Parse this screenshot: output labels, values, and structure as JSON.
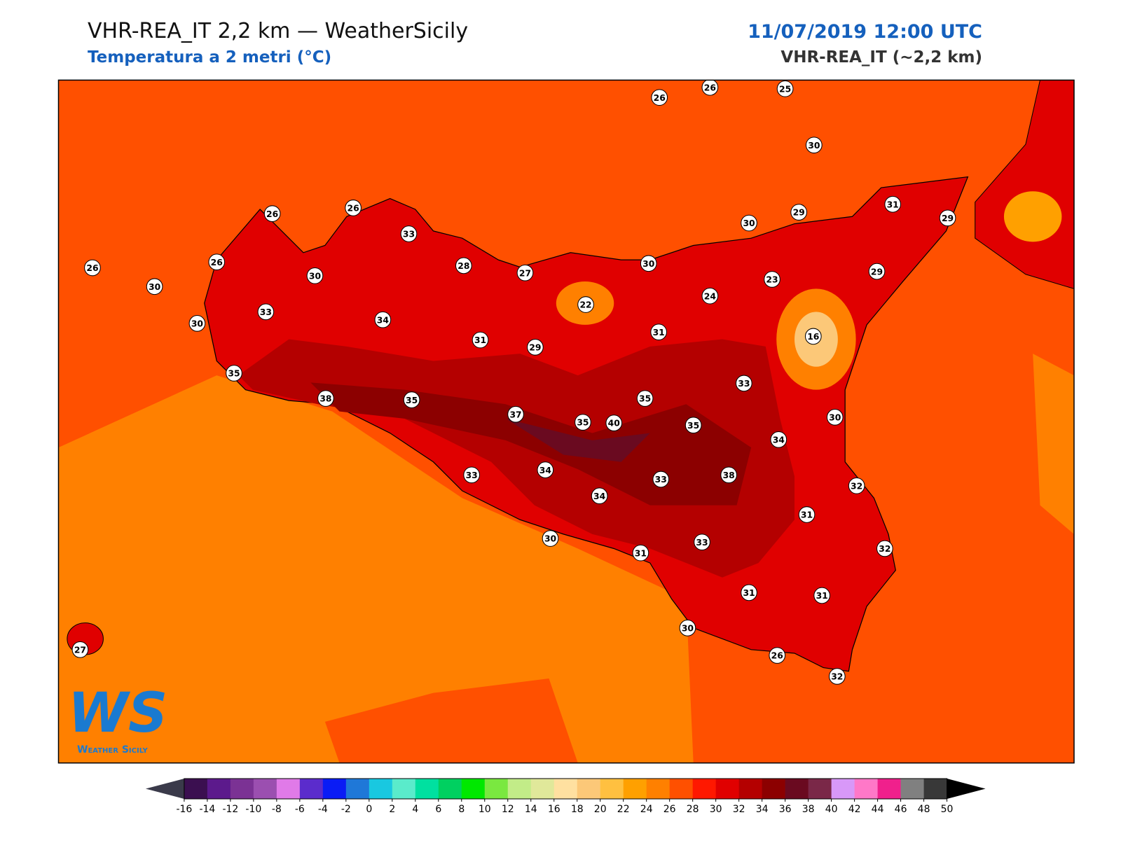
{
  "header": {
    "title": "VHR-REA_IT 2,2 km — WeatherSicily",
    "subtitle": "Temperatura a 2 metri (°C)",
    "date": "11/07/2019 12:00 UTC",
    "model": "VHR-REA_IT (~2,2 km)"
  },
  "logo": {
    "mark": "WS",
    "name": "Weather Sicily"
  },
  "stations": [
    26,
    26,
    25,
    30,
    31,
    29,
    29,
    30,
    29,
    23,
    24,
    30,
    22,
    27,
    28,
    33,
    26,
    26,
    26,
    26,
    30,
    30,
    33,
    30,
    34,
    31,
    29,
    31,
    16,
    33,
    35,
    35,
    40,
    35,
    37,
    35,
    38,
    35,
    30,
    34,
    38,
    33,
    34,
    33,
    34,
    32,
    31,
    30,
    31,
    33,
    32,
    31,
    31,
    30,
    26,
    32,
    27
  ],
  "colorbar": {
    "ticks": [
      -16,
      -14,
      -12,
      -10,
      -8,
      -6,
      -4,
      -2,
      0,
      2,
      4,
      6,
      8,
      10,
      12,
      14,
      16,
      18,
      20,
      22,
      24,
      26,
      28,
      30,
      32,
      34,
      36,
      38,
      40,
      42,
      44,
      46,
      48,
      50
    ],
    "colors": [
      "#3b0f50",
      "#5c1a8c",
      "#7b3294",
      "#9b4fb0",
      "#e07ae8",
      "#5b2ccc",
      "#0a1cf5",
      "#1f78d8",
      "#19c8e0",
      "#5aebcb",
      "#00e0a0",
      "#00d060",
      "#00e800",
      "#7ae840",
      "#c2ec88",
      "#e0e89a",
      "#ffe0a0",
      "#fcc878",
      "#ffc040",
      "#ffa000",
      "#ff8000",
      "#ff5000",
      "#ff1800",
      "#e00000",
      "#b40000",
      "#8c0000",
      "#6a0a20",
      "#7a2848",
      "#d898f8",
      "#ff78c8",
      "#f0208c",
      "#808080",
      "#383838"
    ],
    "under": "#3a3a4a",
    "over": "#000000"
  }
}
